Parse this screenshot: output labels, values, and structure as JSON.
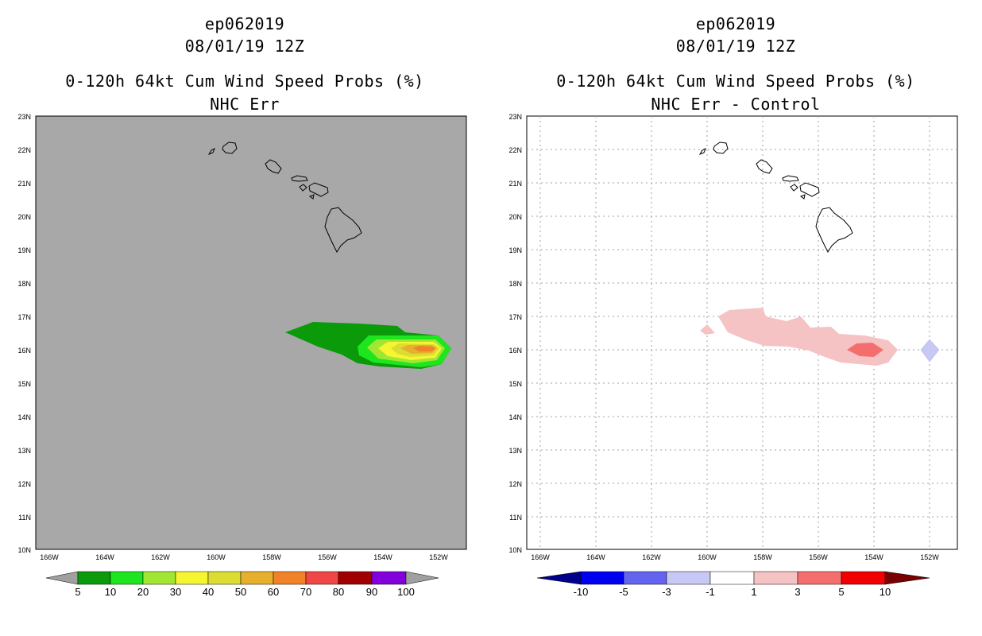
{
  "panels": [
    {
      "storm_id": "ep062019",
      "datetime": "08/01/19 12Z",
      "product": "0-120h 64kt Cum Wind Speed Probs (%)",
      "subtitle": "NHC Err",
      "background_color": "#a8a8a8",
      "lat_labels": [
        "23N",
        "22N",
        "21N",
        "20N",
        "19N",
        "18N",
        "17N",
        "16N",
        "15N",
        "14N",
        "13N",
        "12N",
        "11N",
        "10N"
      ],
      "lon_labels": [
        "166W",
        "164W",
        "162W",
        "160W",
        "158W",
        "156W",
        "154W",
        "152W"
      ],
      "colorbar": {
        "labels": [
          "5",
          "10",
          "20",
          "30",
          "40",
          "50",
          "60",
          "70",
          "80",
          "90",
          "100"
        ],
        "colors": [
          "#a0a0a0",
          "#0a9a0a",
          "#1ee61e",
          "#a0e632",
          "#f5f532",
          "#dcdc32",
          "#e6af2d",
          "#f08228",
          "#f04646",
          "#a00000",
          "#8200dc",
          "#a0a0a0"
        ]
      },
      "contour_levels": [
        {
          "level": "5-10",
          "color": "#0a9a0a"
        },
        {
          "level": "10-20",
          "color": "#1ee61e"
        },
        {
          "level": "20-30",
          "color": "#a0e632"
        },
        {
          "level": "30-40",
          "color": "#f5f532"
        },
        {
          "level": "40-50",
          "color": "#dcdc32"
        },
        {
          "level": "50-60",
          "color": "#e6af2d"
        },
        {
          "level": "60-70",
          "color": "#f08228"
        }
      ]
    },
    {
      "storm_id": "ep062019",
      "datetime": "08/01/19 12Z",
      "product": "0-120h 64kt Cum Wind Speed Probs (%)",
      "subtitle": "NHC Err - Control",
      "background_color": "#ffffff",
      "lat_labels": [
        "23N",
        "22N",
        "21N",
        "20N",
        "19N",
        "18N",
        "17N",
        "16N",
        "15N",
        "14N",
        "13N",
        "12N",
        "11N",
        "10N"
      ],
      "lon_labels": [
        "166W",
        "164W",
        "162W",
        "160W",
        "158W",
        "156W",
        "154W",
        "152W"
      ],
      "colorbar": {
        "labels": [
          "-10",
          "-5",
          "-3",
          "-1",
          "1",
          "3",
          "5",
          "10"
        ],
        "colors": [
          "#00008c",
          "#0000f0",
          "#6464f0",
          "#c8c8f5",
          "#ffffff",
          "#f5c3c3",
          "#f56e6e",
          "#f00000",
          "#780000"
        ]
      },
      "contour_levels": [
        {
          "level": "1-3",
          "color": "#f5c3c3"
        },
        {
          "level": "3-5",
          "color": "#f56e6e"
        },
        {
          "level": "-1 to -3",
          "color": "#c8c8f5"
        }
      ]
    }
  ]
}
